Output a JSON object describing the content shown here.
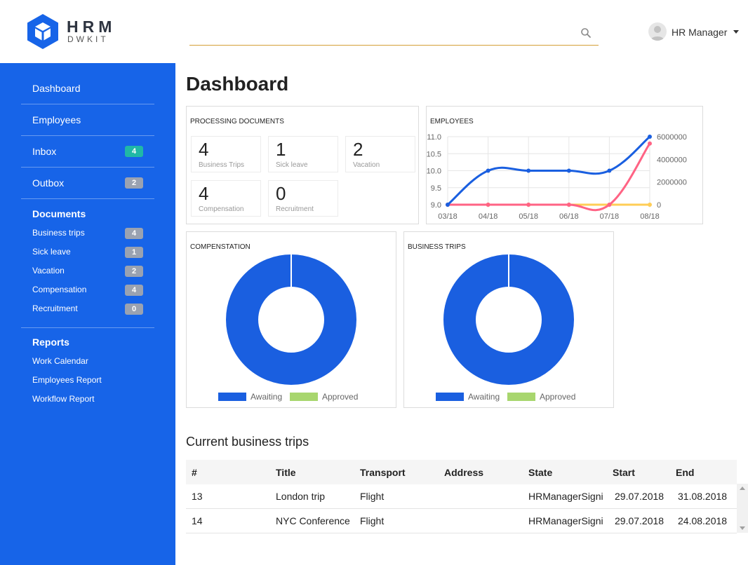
{
  "brand": {
    "name": "HRM",
    "sub": "DWKIT",
    "logo_icon": "cube-icon"
  },
  "search": {
    "value": "",
    "placeholder": ""
  },
  "user": {
    "name": "HR Manager"
  },
  "sidebar": {
    "main": [
      {
        "label": "Dashboard",
        "badge": ""
      },
      {
        "label": "Employees",
        "badge": ""
      },
      {
        "label": "Inbox",
        "badge": "4"
      },
      {
        "label": "Outbox",
        "badge": "2"
      }
    ],
    "documents": {
      "heading": "Documents",
      "items": [
        {
          "label": "Business trips",
          "badge": "4"
        },
        {
          "label": "Sick leave",
          "badge": "1"
        },
        {
          "label": "Vacation",
          "badge": "2"
        },
        {
          "label": "Compensation",
          "badge": "4"
        },
        {
          "label": "Recruitment",
          "badge": "0"
        }
      ]
    },
    "reports": {
      "heading": "Reports",
      "items": [
        {
          "label": "Work Calendar"
        },
        {
          "label": "Employees Report"
        },
        {
          "label": "Workflow Report"
        }
      ]
    }
  },
  "page": {
    "title": "Dashboard"
  },
  "processing": {
    "title": "PROCESSING DOCUMENTS",
    "tiles": [
      {
        "value": "4",
        "label": "Business Trips"
      },
      {
        "value": "1",
        "label": "Sick leave"
      },
      {
        "value": "2",
        "label": "Vacation"
      },
      {
        "value": "4",
        "label": "Compensation"
      },
      {
        "value": "0",
        "label": "Recruitment"
      }
    ]
  },
  "employees_chart": {
    "title": "EMPLOYEES"
  },
  "compensation_chart": {
    "title": "COMPENSTATION"
  },
  "business_trips_chart": {
    "title": "BUSINESS TRIPS"
  },
  "chart_data": [
    {
      "type": "line",
      "title": "EMPLOYEES",
      "x": [
        "03/18",
        "04/18",
        "05/18",
        "06/18",
        "07/18",
        "08/18"
      ],
      "left_axis": {
        "ylim": [
          9.0,
          11.0
        ],
        "ticks": [
          "9.0",
          "9.5",
          "10.0",
          "10.5",
          "11.0"
        ],
        "tick_values": [
          9.0,
          9.5,
          10.0,
          10.5,
          11.0
        ]
      },
      "right_axis": {
        "ylim": [
          0,
          6000000
        ],
        "ticks": [
          "0",
          "2000000",
          "4000000",
          "6000000"
        ],
        "tick_values": [
          0,
          2000000,
          4000000,
          6000000
        ]
      },
      "series": [
        {
          "axis": "left",
          "color": "#1a5fe0",
          "values": [
            9.0,
            10.0,
            10.0,
            10.0,
            10.0,
            11.0
          ]
        },
        {
          "axis": "right",
          "color": "#ff6384",
          "values": [
            0,
            0,
            0,
            0,
            0,
            5400000
          ]
        },
        {
          "axis": "right",
          "color": "#ffcd56",
          "values": [
            0,
            0,
            0,
            0,
            0,
            0
          ]
        }
      ],
      "grid": true
    },
    {
      "type": "pie",
      "title": "COMPENSTATION",
      "donut": true,
      "labels": [
        "Awaiting",
        "Approved"
      ],
      "values": [
        1,
        0
      ],
      "colors": [
        "#1a5fe0",
        "#a8d66e"
      ],
      "legend": "bottom"
    },
    {
      "type": "pie",
      "title": "BUSINESS TRIPS",
      "donut": true,
      "labels": [
        "Awaiting",
        "Approved"
      ],
      "values": [
        1,
        0
      ],
      "colors": [
        "#1a5fe0",
        "#a8d66e"
      ],
      "legend": "bottom"
    }
  ],
  "trips": {
    "title": "Current business trips",
    "columns": [
      "#",
      "Title",
      "Transport",
      "Address",
      "State",
      "Start",
      "End"
    ],
    "rows": [
      [
        "13",
        "London trip",
        "Flight",
        "",
        "HRManagerSigni",
        "29.07.2018",
        "31.08.2018"
      ],
      [
        "14",
        "NYC Conference",
        "Flight",
        "",
        "HRManagerSigni",
        "29.07.2018",
        "24.08.2018"
      ]
    ]
  },
  "colors": {
    "sidebar": "#1764e8",
    "accent_underline": "#d4a037",
    "badge_teal": "#20b8a6",
    "badge_gray": "#9aa2b1"
  }
}
